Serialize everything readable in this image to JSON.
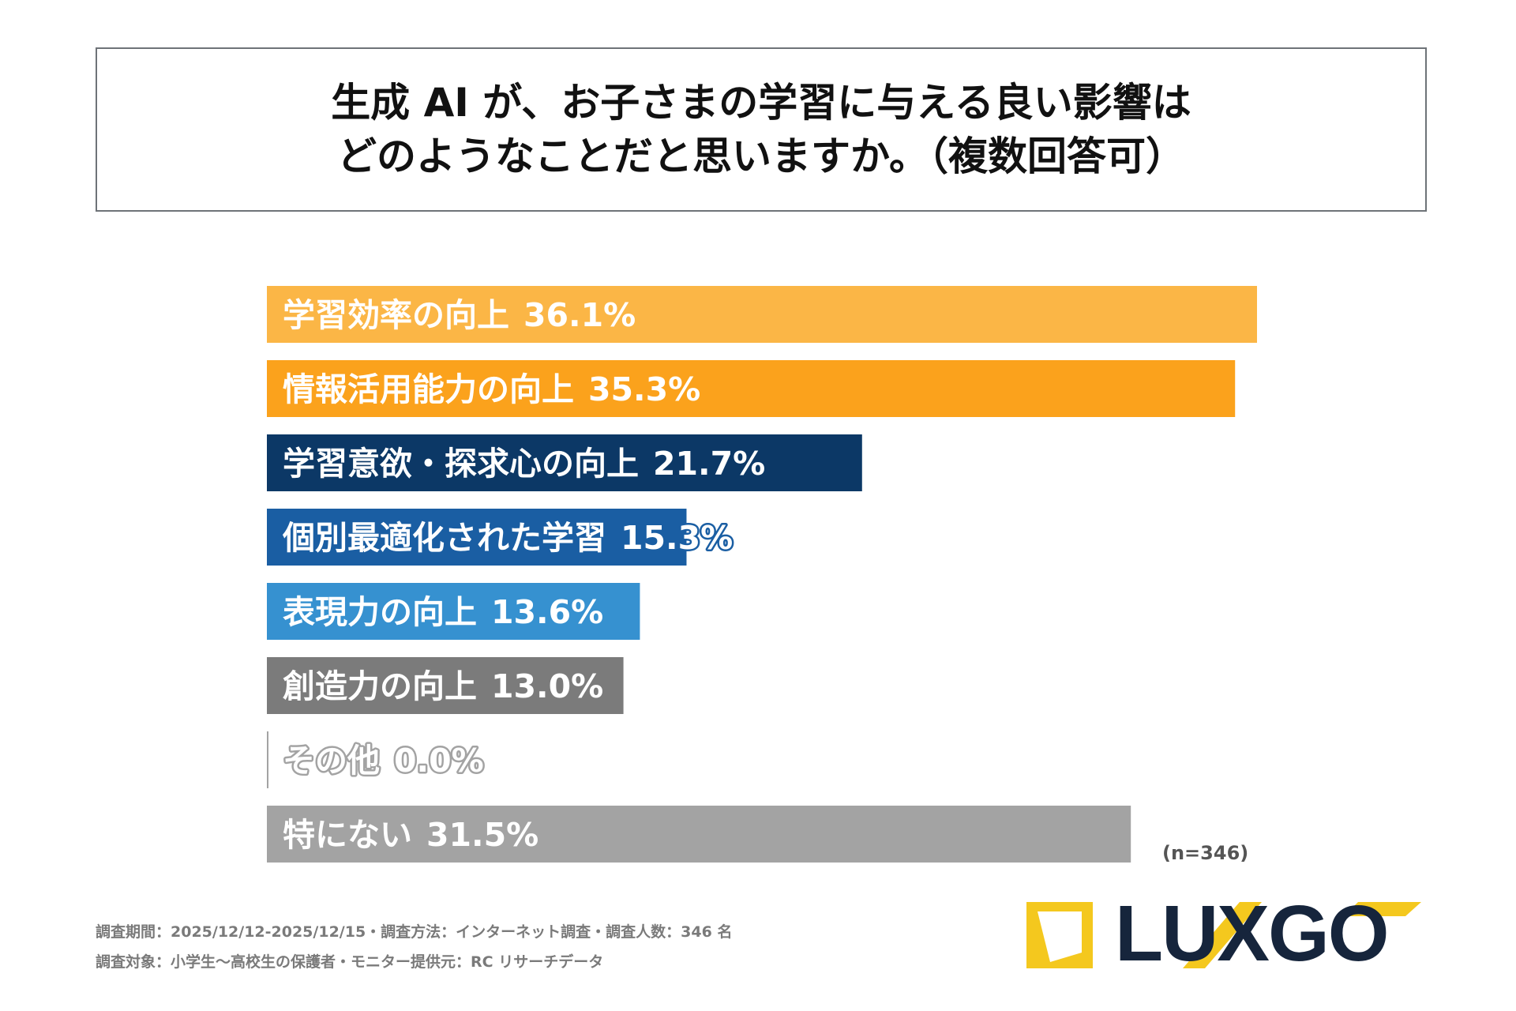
{
  "title": {
    "line1": "生成 AI が、お子さまの学習に与える良い影響は",
    "line2": "どのようなことだと思いますか。（複数回答可）"
  },
  "chart_data": {
    "type": "bar",
    "orientation": "horizontal",
    "title": "生成 AI が、お子さまの学習に与える良い影響はどのようなことだと思いますか。（複数回答可）",
    "xlim": [
      0,
      36.1
    ],
    "categories": [
      "学習効率の向上",
      "情報活用能力の向上",
      "学習意欲・探求心の向上",
      "個別最適化された学習",
      "表現力の向上",
      "創造力の向上",
      "その他",
      "特にない"
    ],
    "values": [
      36.1,
      35.3,
      21.7,
      15.3,
      13.6,
      13.0,
      0.0,
      31.5
    ],
    "value_labels": [
      "36.1%",
      "35.3%",
      "21.7%",
      "15.3%",
      "13.6%",
      "13.0%",
      "0.0%",
      "31.5%"
    ],
    "colors": [
      "#fbb646",
      "#fba21c",
      "#0c3866",
      "#1a5ea3",
      "#3691d0",
      "#7b7b7b",
      "#a3a3a3",
      "#a3a3a3"
    ],
    "sample_size": "(n=346)"
  },
  "footer": {
    "line1": "調査期間：2025/12/12-2025/12/15・調査方法：インターネット調査・調査人数：346 名",
    "line2": "調査対象：小学生〜高校生の保護者・モニター提供元：RC リサーチデータ"
  },
  "logo": {
    "text": "LUXGO",
    "accent_color": "#f4c81e",
    "text_color": "#16253c"
  }
}
